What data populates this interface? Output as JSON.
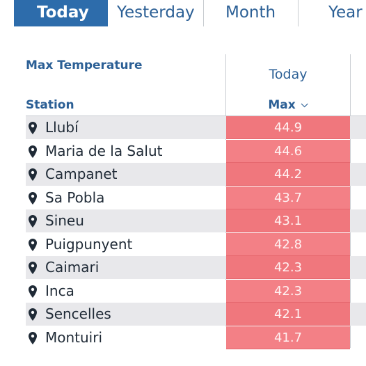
{
  "tabs": [
    {
      "label": "Today",
      "active": true
    },
    {
      "label": "Yesterday",
      "active": false
    },
    {
      "label": "Month",
      "active": false
    },
    {
      "label": "Year",
      "active": false
    }
  ],
  "table": {
    "title": "Max Temperature",
    "station_header": "Station",
    "column_group": "Today",
    "column_max": "Max",
    "rows": [
      {
        "station": "Llubí",
        "max": "44.9"
      },
      {
        "station": "Maria de la Salut",
        "max": "44.6"
      },
      {
        "station": "Campanet",
        "max": "44.2"
      },
      {
        "station": "Sa Pobla",
        "max": "43.7"
      },
      {
        "station": "Sineu",
        "max": "43.1"
      },
      {
        "station": "Puigpunyent",
        "max": "42.8"
      },
      {
        "station": "Caimari",
        "max": "42.3"
      },
      {
        "station": "Inca",
        "max": "42.3"
      },
      {
        "station": "Sencelles",
        "max": "42.1"
      },
      {
        "station": "Montuiri",
        "max": "41.7"
      }
    ]
  },
  "colors": {
    "accent": "#2d6cab",
    "hot_cell": "#f0777d",
    "link_text": "#2b5f95"
  },
  "icons": {
    "row_icon": "map-pin-icon",
    "sort_icon": "chevron-down-icon"
  }
}
